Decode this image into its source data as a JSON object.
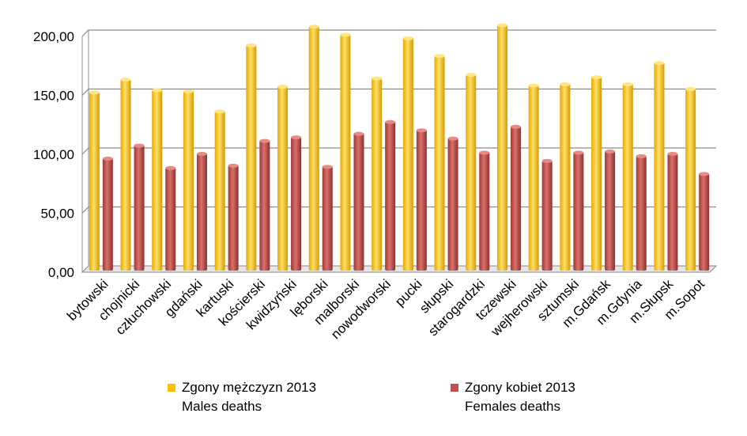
{
  "chart_data": {
    "type": "bar",
    "categories": [
      "bytowski",
      "chojnicki",
      "człuchowski",
      "gdański",
      "kartuski",
      "kościerski",
      "kwidzyński",
      "lęborski",
      "malborski",
      "nowodworski",
      "pucki",
      "słupski",
      "starogardzki",
      "tczewski",
      "wejherowski",
      "sztumski",
      "m.Gdańsk",
      "m.Gdynia",
      "m.Słupsk",
      "m.Sopot"
    ],
    "series": [
      {
        "name": "Zgony mężczyzn 2013",
        "subname": "Males deaths",
        "color": "#FFC000",
        "values": [
          153,
          164,
          155,
          154,
          137,
          193,
          158,
          209,
          202,
          165,
          199,
          184,
          168,
          210,
          159,
          160,
          166,
          160,
          178,
          156
        ]
      },
      {
        "name": "Zgony kobiet 2013",
        "subname": "Females deaths",
        "color": "#C0504D",
        "values": [
          97,
          108,
          89,
          101,
          91,
          112,
          115,
          90,
          118,
          128,
          121,
          114,
          102,
          124,
          95,
          102,
          103,
          99,
          101,
          84
        ]
      }
    ],
    "yticks": [
      "0,00",
      "50,00",
      "100,00",
      "150,00",
      "200,00"
    ],
    "ylim": [
      0,
      200
    ],
    "grid": true,
    "legend_position": "bottom"
  }
}
